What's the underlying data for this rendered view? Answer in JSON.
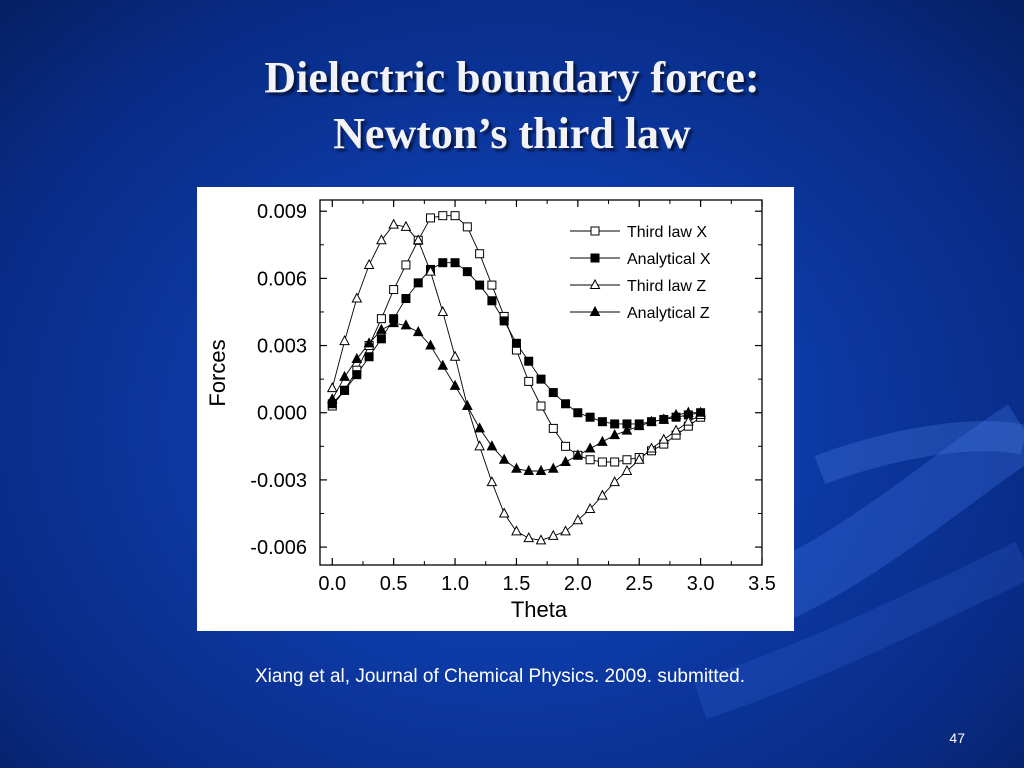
{
  "slide": {
    "title_line1": "Dielectric boundary force:",
    "title_line2": "Newton’s third law",
    "citation": "Xiang et al, Journal of Chemical Physics. 2009. submitted.",
    "page_number": "47"
  },
  "chart_data": {
    "type": "line",
    "xlabel": "Theta",
    "ylabel": "Forces",
    "xlim": [
      -0.1,
      3.5
    ],
    "ylim": [
      -0.0068,
      0.0095
    ],
    "x_ticks": [
      "0.0",
      "0.5",
      "1.0",
      "1.5",
      "2.0",
      "2.5",
      "3.0",
      "3.5"
    ],
    "x_tick_values": [
      0,
      0.5,
      1.0,
      1.5,
      2.0,
      2.5,
      3.0,
      3.5
    ],
    "y_ticks": [
      "0.009",
      "0.006",
      "0.003",
      "0.000",
      "-0.003",
      "-0.006"
    ],
    "y_tick_values": [
      0.009,
      0.006,
      0.003,
      0.0,
      -0.003,
      -0.006
    ],
    "grid": false,
    "legend_position": "top-right",
    "x": [
      0.0,
      0.1,
      0.2,
      0.3,
      0.4,
      0.5,
      0.6,
      0.7,
      0.8,
      0.9,
      1.0,
      1.1,
      1.2,
      1.3,
      1.4,
      1.5,
      1.6,
      1.7,
      1.8,
      1.9,
      2.0,
      2.1,
      2.2,
      2.3,
      2.4,
      2.5,
      2.6,
      2.7,
      2.8,
      2.9,
      3.0
    ],
    "series": [
      {
        "name": "Third law X",
        "marker": "open-square",
        "values": [
          0.0003,
          0.001,
          0.0019,
          0.003,
          0.0042,
          0.0055,
          0.0066,
          0.0077,
          0.0087,
          0.0088,
          0.0088,
          0.0083,
          0.0071,
          0.0057,
          0.0043,
          0.0028,
          0.0014,
          0.0003,
          -0.0007,
          -0.0015,
          -0.0019,
          -0.0021,
          -0.0022,
          -0.0022,
          -0.0021,
          -0.002,
          -0.0017,
          -0.0014,
          -0.001,
          -0.0006,
          -0.0002
        ]
      },
      {
        "name": "Analytical X",
        "marker": "filled-square",
        "values": [
          0.0004,
          0.001,
          0.0017,
          0.0025,
          0.0033,
          0.0042,
          0.0051,
          0.0058,
          0.0064,
          0.0067,
          0.0067,
          0.0063,
          0.0057,
          0.005,
          0.0041,
          0.0031,
          0.0023,
          0.0015,
          0.0009,
          0.0004,
          0.0,
          -0.0002,
          -0.0004,
          -0.0005,
          -0.0005,
          -0.0005,
          -0.0004,
          -0.0003,
          -0.0002,
          -0.0001,
          0.0
        ]
      },
      {
        "name": "Third law Z",
        "marker": "open-triangle",
        "values": [
          0.0011,
          0.0032,
          0.0051,
          0.0066,
          0.0077,
          0.0084,
          0.0083,
          0.0077,
          0.0063,
          0.0045,
          0.0025,
          0.0003,
          -0.0015,
          -0.0031,
          -0.0045,
          -0.0053,
          -0.0056,
          -0.0057,
          -0.0055,
          -0.0053,
          -0.0048,
          -0.0043,
          -0.0037,
          -0.0031,
          -0.0026,
          -0.0021,
          -0.0016,
          -0.0012,
          -0.0008,
          -0.0004,
          -0.0001
        ]
      },
      {
        "name": "Analytical Z",
        "marker": "filled-triangle",
        "values": [
          0.0006,
          0.0016,
          0.0024,
          0.0031,
          0.0037,
          0.004,
          0.0039,
          0.0036,
          0.003,
          0.0021,
          0.0012,
          0.0003,
          -0.0007,
          -0.0015,
          -0.0021,
          -0.0025,
          -0.0026,
          -0.0026,
          -0.0025,
          -0.0022,
          -0.0019,
          -0.0016,
          -0.0013,
          -0.001,
          -0.0008,
          -0.0006,
          -0.0004,
          -0.0003,
          -0.0001,
          0.0,
          0.0
        ]
      }
    ]
  }
}
